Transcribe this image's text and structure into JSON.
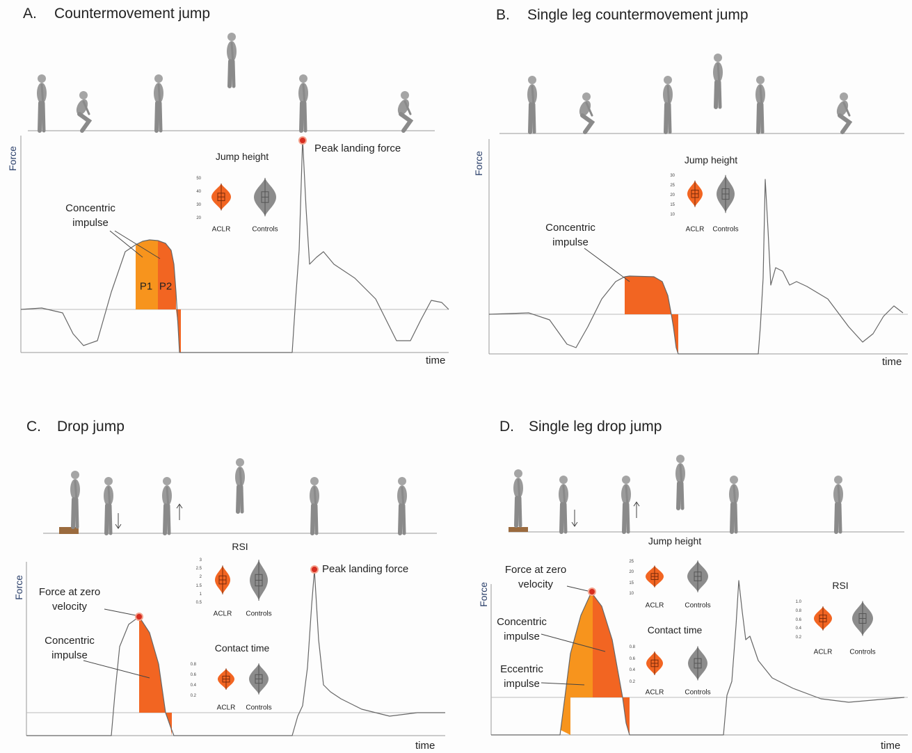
{
  "panels": [
    {
      "label": "A.",
      "title": "Countermovement jump",
      "y_axis": "Force",
      "x_axis": "time",
      "annotations": [
        "Concentric impulse",
        "P1",
        "P2",
        "Peak landing force"
      ],
      "insets": [
        {
          "title": "Jump height",
          "ticks": [
            50,
            40,
            30,
            20
          ],
          "groups": [
            "ACLR",
            "Controls"
          ]
        }
      ]
    },
    {
      "label": "B.",
      "title": "Single leg countermovement jump",
      "y_axis": "Force",
      "x_axis": "time",
      "annotations": [
        "Concentric impulse"
      ],
      "insets": [
        {
          "title": "Jump height",
          "ticks": [
            30,
            25,
            20,
            15,
            10
          ],
          "groups": [
            "ACLR",
            "Controls"
          ]
        }
      ]
    },
    {
      "label": "C.",
      "title": "Drop jump",
      "y_axis": "Force",
      "x_axis": "time",
      "annotations": [
        "Force at zero velocity",
        "Concentric impulse",
        "Peak landing force"
      ],
      "insets": [
        {
          "title": "RSI",
          "ticks": [
            3,
            2.5,
            2,
            1.5,
            1,
            0.5
          ],
          "groups": [
            "ACLR",
            "Controls"
          ]
        },
        {
          "title": "Contact time",
          "ticks": [
            0.8,
            0.6,
            0.4,
            0.2
          ],
          "groups": [
            "ACLR",
            "Controls"
          ]
        }
      ]
    },
    {
      "label": "D.",
      "title": "Single leg drop jump",
      "y_axis": "Force",
      "x_axis": "time",
      "annotations": [
        "Force at zero velocity",
        "Concentric impulse",
        "Eccentric impulse"
      ],
      "insets": [
        {
          "title": "Jump height",
          "ticks": [
            25,
            20,
            15,
            10
          ],
          "groups": [
            "ACLR",
            "Controls"
          ]
        },
        {
          "title": "Contact time",
          "ticks": [
            0.8,
            0.6,
            0.4,
            0.2
          ],
          "groups": [
            "ACLR",
            "Controls"
          ]
        },
        {
          "title": "RSI",
          "ticks": [
            {
              "value": 1,
              "label": "1.0"
            },
            0.8,
            0.6,
            0.4,
            0.2
          ],
          "groups": [
            "ACLR",
            "Controls"
          ]
        }
      ]
    }
  ]
}
